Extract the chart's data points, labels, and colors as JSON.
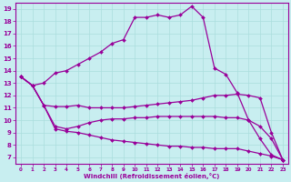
{
  "xlabel": "Windchill (Refroidissement éolien,°C)",
  "background_color": "#c8eef0",
  "line_color": "#990099",
  "grid_color": "#aadddd",
  "xlim": [
    -0.5,
    23.5
  ],
  "ylim": [
    6.5,
    19.5
  ],
  "xticks": [
    0,
    1,
    2,
    3,
    4,
    5,
    6,
    7,
    8,
    9,
    10,
    11,
    12,
    13,
    14,
    15,
    16,
    17,
    18,
    19,
    20,
    21,
    22,
    23
  ],
  "yticks": [
    7,
    8,
    9,
    10,
    11,
    12,
    13,
    14,
    15,
    16,
    17,
    18,
    19
  ],
  "lines": [
    {
      "x": [
        0,
        1,
        2,
        3,
        4,
        5,
        6,
        7,
        8,
        9,
        10,
        11,
        12,
        13,
        14,
        15,
        16,
        17,
        18,
        19,
        20,
        21,
        22,
        23
      ],
      "y": [
        13.5,
        12.8,
        13.0,
        13.8,
        14.0,
        14.5,
        15.0,
        15.5,
        16.2,
        16.5,
        18.3,
        18.3,
        18.5,
        18.3,
        18.5,
        19.2,
        18.3,
        14.2,
        13.7,
        12.2,
        10.0,
        8.5,
        7.2,
        6.8
      ]
    },
    {
      "x": [
        0,
        1,
        2,
        3,
        4,
        5,
        6,
        7,
        8,
        9,
        10,
        11,
        12,
        13,
        14,
        15,
        16,
        17,
        18,
        19,
        20,
        21,
        22,
        23
      ],
      "y": [
        13.5,
        12.8,
        11.2,
        11.1,
        11.1,
        11.2,
        11.0,
        11.0,
        11.0,
        11.0,
        11.1,
        11.2,
        11.3,
        11.4,
        11.5,
        11.6,
        11.8,
        12.0,
        12.0,
        12.1,
        12.0,
        11.8,
        9.0,
        6.8
      ]
    },
    {
      "x": [
        0,
        1,
        2,
        3,
        4,
        5,
        6,
        7,
        8,
        9,
        10,
        11,
        12,
        13,
        14,
        15,
        16,
        17,
        18,
        19,
        20,
        21,
        22,
        23
      ],
      "y": [
        13.5,
        12.8,
        11.2,
        9.5,
        9.3,
        9.5,
        9.8,
        10.0,
        10.1,
        10.1,
        10.2,
        10.2,
        10.3,
        10.3,
        10.3,
        10.3,
        10.3,
        10.3,
        10.2,
        10.2,
        10.0,
        9.5,
        8.5,
        6.8
      ]
    },
    {
      "x": [
        0,
        1,
        2,
        3,
        4,
        5,
        6,
        7,
        8,
        9,
        10,
        11,
        12,
        13,
        14,
        15,
        16,
        17,
        18,
        19,
        20,
        21,
        22,
        23
      ],
      "y": [
        13.5,
        12.8,
        11.2,
        9.3,
        9.1,
        9.0,
        8.8,
        8.6,
        8.4,
        8.3,
        8.2,
        8.1,
        8.0,
        7.9,
        7.9,
        7.8,
        7.8,
        7.7,
        7.7,
        7.7,
        7.5,
        7.3,
        7.1,
        6.8
      ]
    }
  ]
}
